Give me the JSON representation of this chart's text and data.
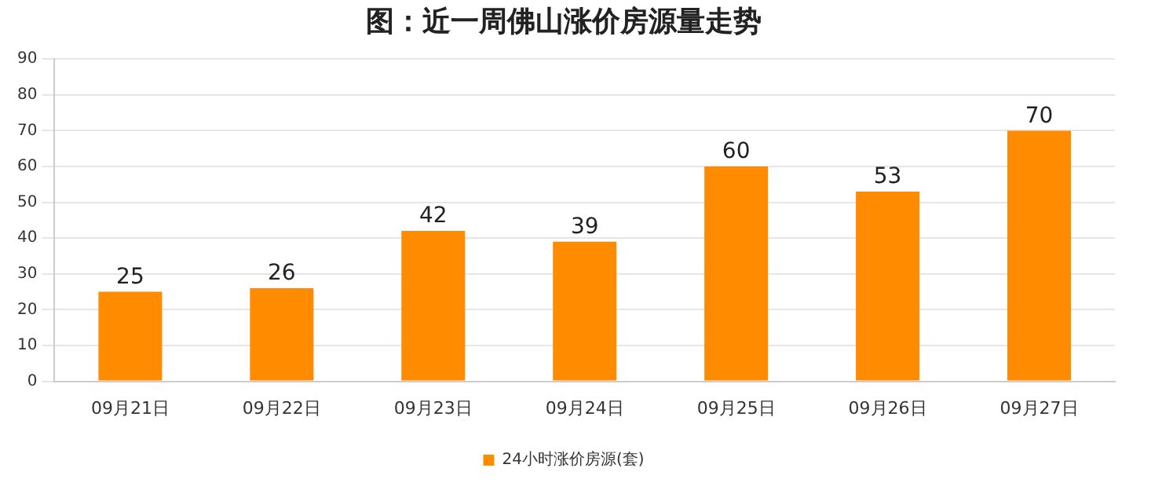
{
  "chart_data": {
    "type": "bar",
    "title": "图：近一周佛山涨价房源量走势",
    "categories": [
      "09月21日",
      "09月22日",
      "09月23日",
      "09月24日",
      "09月25日",
      "09月26日",
      "09月27日"
    ],
    "series": [
      {
        "name": "24小时涨价房源(套)",
        "color": "#ff8c00",
        "values": [
          25,
          26,
          42,
          39,
          60,
          53,
          70
        ]
      }
    ],
    "ylim": [
      0,
      90
    ],
    "yticks": [
      0,
      10,
      20,
      30,
      40,
      50,
      60,
      70,
      80,
      90
    ],
    "grid": "y",
    "legend": "bottom",
    "data_labels": true
  }
}
